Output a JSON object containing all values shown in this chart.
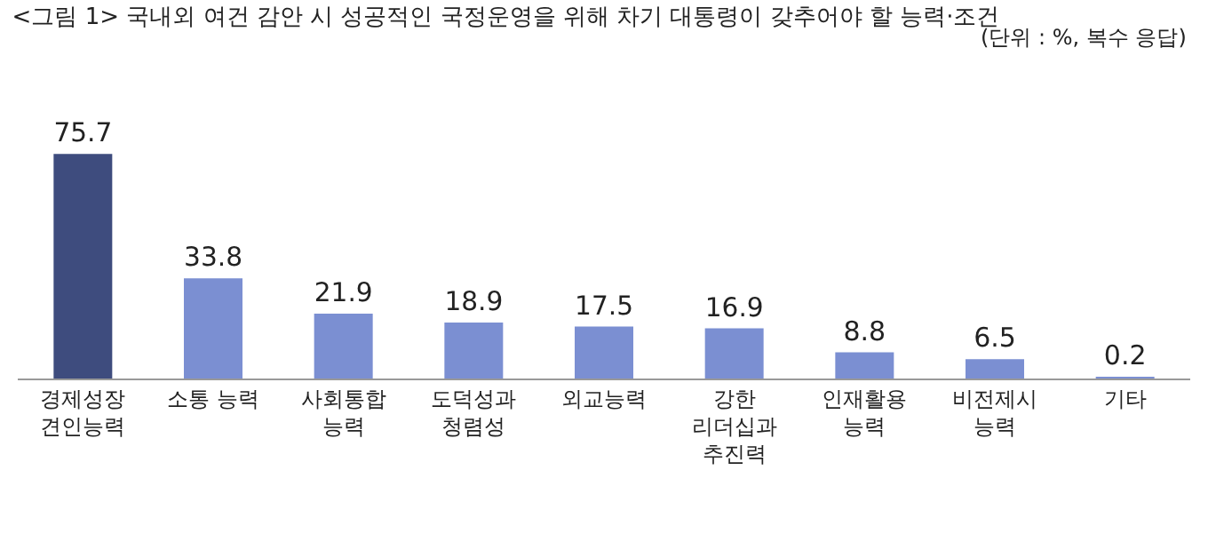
{
  "chart_data": {
    "type": "bar",
    "title": "<그림 1> 국내외 여건 감안 시 성공적인 국정운영을 위해 차기 대통령이 갖추어야 할 능력·조건",
    "subtitle": "(단위 : %, 복수 응답)",
    "categories": [
      "경제성장\n견인능력",
      "소통 능력",
      "사회통합\n능력",
      "도덕성과\n청렴성",
      "외교능력",
      "강한\n리더십과\n추진력",
      "인재활용\n능력",
      "비전제시\n능력",
      "기타"
    ],
    "values": [
      75.7,
      33.8,
      21.9,
      18.9,
      17.5,
      16.9,
      8.8,
      6.5,
      0.2
    ],
    "colors": [
      "#3e4c7e",
      "#7b8fd2",
      "#7b8fd2",
      "#7b8fd2",
      "#7b8fd2",
      "#7b8fd2",
      "#7b8fd2",
      "#7b8fd2",
      "#7b8fd2"
    ],
    "data_labels": true,
    "grid": false,
    "legend": false,
    "tick_labels": "x"
  }
}
